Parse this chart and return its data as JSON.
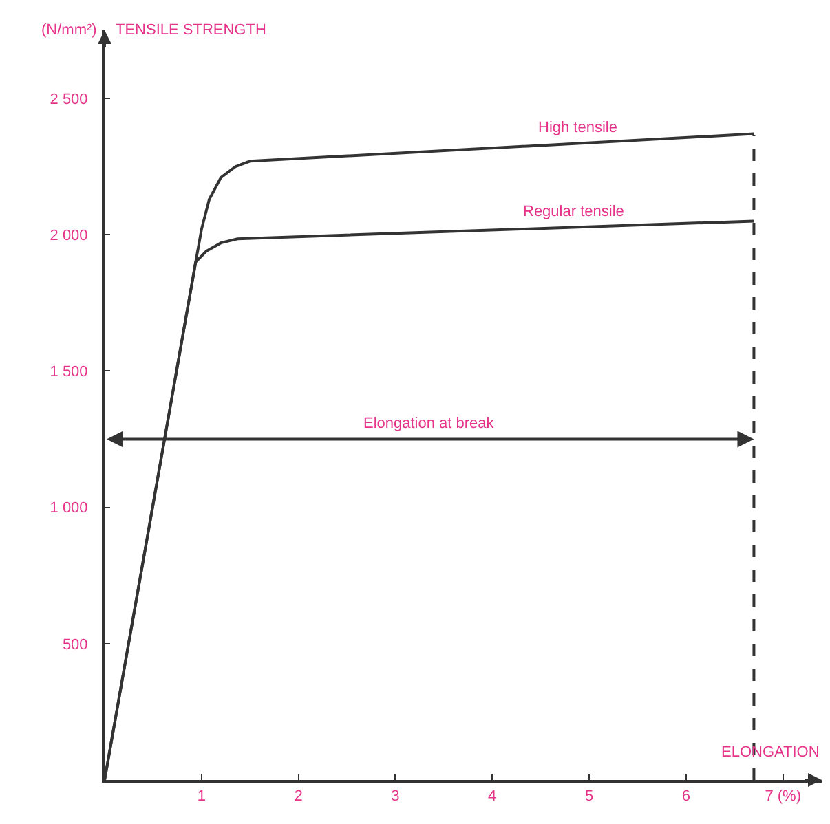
{
  "chart_data": {
    "type": "line",
    "xlabel": "ELONGATION",
    "ylabel": "TENSILE STRENGTH",
    "annotations": [
      "(N/mm²)"
    ],
    "xlim": [
      0,
      7.4
    ],
    "xticks": [
      1,
      2,
      3,
      4,
      5,
      6,
      {
        "value": 7,
        "label": "7 (%)"
      }
    ],
    "ylim": [
      0,
      2750
    ],
    "yticks": [
      {
        "value": 500,
        "label": "500"
      },
      {
        "value": 1000,
        "label": "1 000"
      },
      {
        "value": 1500,
        "label": "1 500"
      },
      {
        "value": 2000,
        "label": "2 000"
      },
      {
        "value": 2500,
        "label": "2 500"
      }
    ],
    "grid": false,
    "legend": false,
    "marker": "none",
    "line_style": "solid",
    "series": [
      {
        "name": "High tensile",
        "color": "#333333",
        "x": [
          0,
          0.94,
          1.0,
          1.08,
          1.2,
          1.35,
          1.5,
          6.7
        ],
        "values": [
          0,
          1900,
          2020,
          2130,
          2210,
          2250,
          2270,
          2370
        ]
      },
      {
        "name": "Regular tensile",
        "color": "#333333",
        "x": [
          0,
          0.94,
          1.05,
          1.2,
          1.37,
          6.7
        ],
        "values": [
          0,
          1900,
          1940,
          1970,
          1985,
          2050
        ]
      }
    ],
    "ref_lines": [
      {
        "axis": "x",
        "value": 6.7,
        "line_style": "dashed",
        "color": "#333333"
      },
      {
        "axis": "y",
        "value": 1250,
        "label": "Elongation at break",
        "color": "#333333"
      }
    ]
  }
}
